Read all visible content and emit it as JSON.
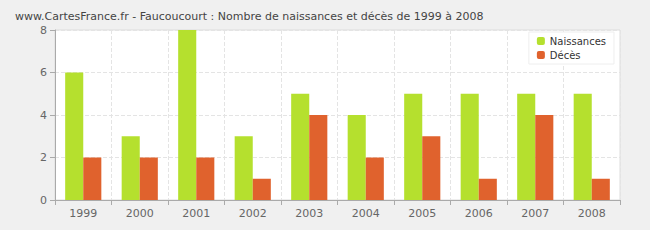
{
  "chart_data": {
    "type": "bar",
    "title": "www.CartesFrance.fr - Faucoucourt : Nombre de naissances et décès de 1999 à 2008",
    "categories": [
      "1999",
      "2000",
      "2001",
      "2002",
      "2003",
      "2004",
      "2005",
      "2006",
      "2007",
      "2008"
    ],
    "series": [
      {
        "name": "Naissances",
        "color": "#b5e02e",
        "values": [
          6,
          3,
          8,
          3,
          5,
          4,
          5,
          5,
          5,
          5
        ]
      },
      {
        "name": "Décès",
        "color": "#e0622d",
        "values": [
          2,
          2,
          2,
          1,
          4,
          2,
          3,
          1,
          4,
          1
        ]
      }
    ],
    "ylim": [
      0,
      8
    ],
    "yticks": [
      0,
      2,
      4,
      6,
      8
    ],
    "grid": true,
    "legend": "upper right"
  }
}
